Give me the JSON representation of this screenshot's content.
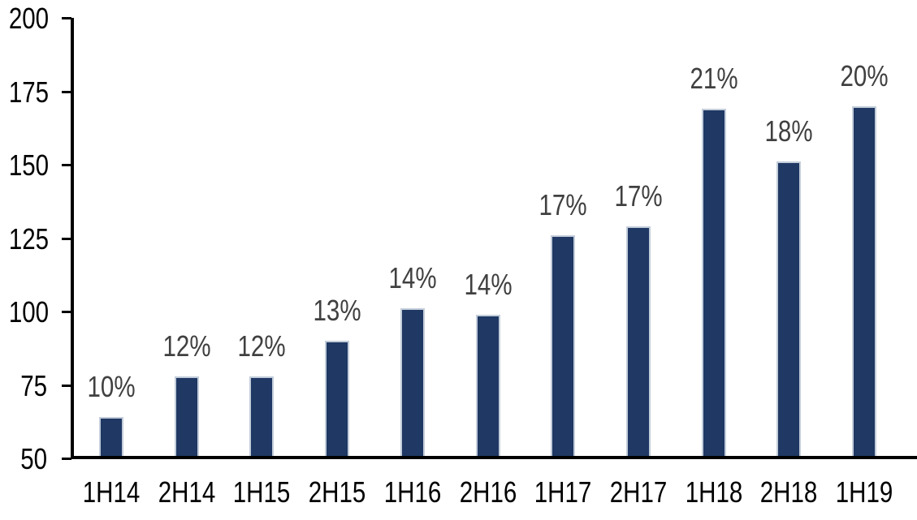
{
  "chart_data": {
    "type": "bar",
    "title": "",
    "xlabel": "",
    "ylabel": "",
    "categories": [
      "1H14",
      "2H14",
      "1H15",
      "2H15",
      "1H16",
      "2H16",
      "1H17",
      "2H17",
      "1H18",
      "2H18",
      "1H19"
    ],
    "values": [
      64,
      78,
      78,
      90,
      101,
      99,
      126,
      129,
      169,
      151,
      170
    ],
    "data_labels": [
      "10%",
      "12%",
      "12%",
      "13%",
      "14%",
      "14%",
      "17%",
      "17%",
      "21%",
      "18%",
      "20%"
    ],
    "ylim": [
      50,
      200
    ],
    "ytick_interval": 25,
    "yticks": [
      "50",
      "75",
      "100",
      "125",
      "150",
      "175",
      "200"
    ],
    "grid": false,
    "legend": false,
    "colors": {
      "bar_fill": "#1f3864",
      "bar_border": "#c3cdda",
      "data_label": "#404040",
      "axis": "#000000",
      "tick_text": "#000000",
      "background": "#ffffff"
    }
  }
}
